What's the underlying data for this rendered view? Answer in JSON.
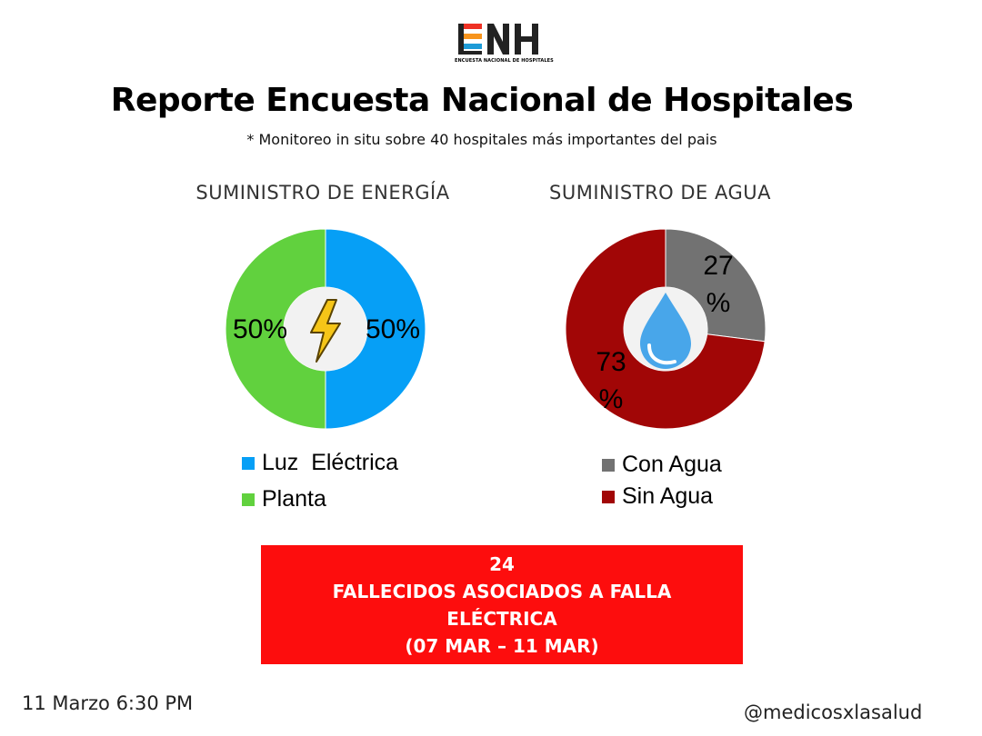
{
  "header": {
    "logo_text": "ENH",
    "logo_subtext": "ENCUESTA NACIONAL DE HOSPITALES",
    "title": "Reporte Encuesta Nacional de Hospitales",
    "subtitle": "* Monitoreo in situ sobre 40 hospitales más importantes del pais"
  },
  "chart_data": [
    {
      "type": "pie",
      "title": "SUMINISTRO DE ENERGÍA",
      "categories": [
        "Luz  Eléctrica",
        "Planta"
      ],
      "values": [
        50,
        50
      ],
      "labels": [
        "50%",
        "50%"
      ],
      "colors": [
        "#069ff6",
        "#61d13e"
      ],
      "center_icon": "lightning-icon",
      "legend": "bottom"
    },
    {
      "type": "pie",
      "title": "SUMINISTRO DE AGUA",
      "categories": [
        "Con Agua",
        "Sin Agua"
      ],
      "values": [
        27,
        73
      ],
      "labels": [
        [
          "27",
          "%"
        ],
        [
          "73",
          "%"
        ]
      ],
      "colors": [
        "#727272",
        "#a10606"
      ],
      "center_icon": "water-drop-icon",
      "legend": "bottom"
    }
  ],
  "alert": {
    "lines": [
      "24",
      "FALLECIDOS ASOCIADOS A FALLA",
      "ELÉCTRICA",
      "(07 MAR – 11 MAR)"
    ],
    "color": "#fd0d0d"
  },
  "footer": {
    "date": "11 Marzo 6:30 PM",
    "handle": "@medicosxlasalud"
  }
}
